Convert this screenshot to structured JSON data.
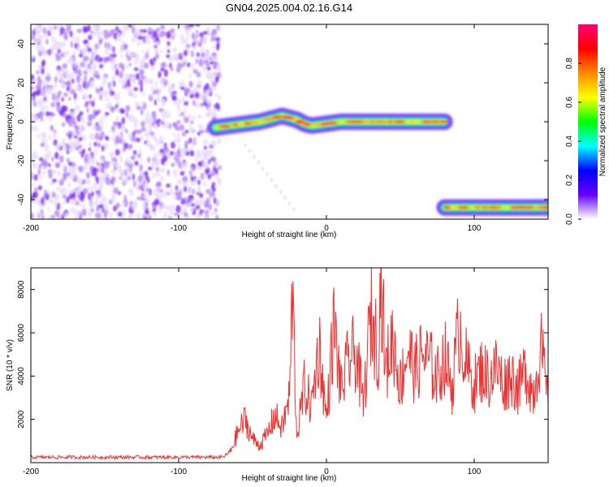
{
  "chart_data": [
    {
      "type": "heatmap",
      "title": "GN04.2025.004.02.16.G14",
      "xlabel": "Height of straight line (km)",
      "ylabel": "Frequency (Hz)",
      "xlim": [
        -200,
        150
      ],
      "ylim": [
        -50,
        50
      ],
      "xticks": [
        "-200",
        "-100",
        "0",
        "100"
      ],
      "yticks": [
        "-40",
        "-20",
        "0",
        "20",
        "40"
      ],
      "colorbar": {
        "label": "Normalized spectral amplitude",
        "range": [
          0,
          1
        ],
        "ticks": [
          "0.0",
          "0.2",
          "0.4",
          "0.6",
          "0.8"
        ],
        "colormap": [
          "#ffffff",
          "#6600ff",
          "#0000ff",
          "#00ffff",
          "#00ff00",
          "#ffff00",
          "#ff8800",
          "#ff0000",
          "#ff0077"
        ]
      },
      "regions": [
        {
          "region": "noise",
          "x_range": [
            -200,
            -72
          ],
          "y_range": [
            -50,
            50
          ],
          "amplitude": 0.1
        },
        {
          "region": "tone",
          "x": [
            -75,
            -65,
            -55,
            -45,
            -35,
            -30,
            -25,
            -20,
            -15,
            -10,
            0,
            10,
            20,
            30,
            40,
            50,
            60,
            70,
            80
          ],
          "y": [
            -3,
            -2,
            -1,
            0,
            2,
            3,
            2,
            1,
            -1,
            -2,
            -1,
            0,
            0,
            0,
            0,
            0,
            0,
            0,
            0
          ],
          "amplitude": 0.7
        },
        {
          "region": "tone",
          "x": [
            80,
            90,
            100,
            110,
            120,
            130,
            140,
            150
          ],
          "y": [
            -44,
            -44,
            -44,
            -44,
            -44,
            -44,
            -44,
            -44
          ],
          "amplitude": 0.75
        }
      ]
    },
    {
      "type": "line",
      "xlabel": "Height of straight line (km)",
      "ylabel": "SNR (10 * v/v)",
      "xlim": [
        -200,
        150
      ],
      "ylim": [
        0,
        9000
      ],
      "xticks": [
        "-200",
        "-100",
        "0",
        "100"
      ],
      "yticks": [
        "2000",
        "4000",
        "6000",
        "8000"
      ],
      "color": "#ee3333",
      "series": [
        {
          "x": [
            -200,
            -150,
            -100,
            -70,
            -65,
            -60,
            -55,
            -50,
            -45,
            -40,
            -35,
            -30,
            -25,
            -23,
            -20,
            -15,
            -10,
            -5,
            0,
            5,
            10,
            15,
            20,
            25,
            30,
            35,
            37,
            40,
            45,
            50,
            55,
            60,
            65,
            70,
            75,
            80,
            85,
            90,
            95,
            100,
            105,
            110,
            115,
            120,
            125,
            130,
            135,
            140,
            145,
            150
          ],
          "y": [
            250,
            250,
            250,
            250,
            500,
            1400,
            2000,
            1100,
            800,
            1300,
            2200,
            1600,
            3000,
            7900,
            1200,
            3500,
            2600,
            5500,
            2000,
            6300,
            3300,
            4700,
            5100,
            2600,
            6800,
            5300,
            8900,
            4200,
            5800,
            3600,
            5300,
            4200,
            5000,
            4600,
            3900,
            4900,
            3500,
            6400,
            4400,
            3600,
            4300,
            3900,
            4400,
            3600,
            4100,
            3400,
            4400,
            3100,
            5400,
            2700
          ]
        }
      ]
    }
  ]
}
